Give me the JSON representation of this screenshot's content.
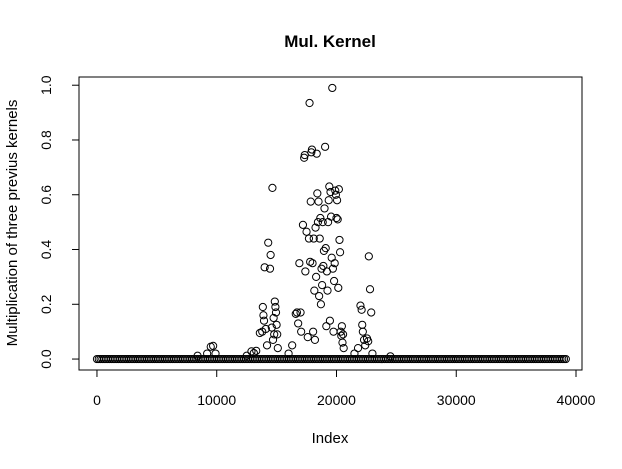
{
  "chart_data": {
    "type": "scatter",
    "title": "Mul. Kernel",
    "xlabel": "Index",
    "ylabel": "Multiplication of three previus kernels",
    "xlim": [
      -1500,
      40500
    ],
    "ylim": [
      -0.04,
      1.03
    ],
    "x_ticks": [
      0,
      10000,
      20000,
      30000,
      40000
    ],
    "x_tick_labels": [
      "0",
      "10000",
      "20000",
      "30000",
      "40000"
    ],
    "y_ticks": [
      0.0,
      0.2,
      0.4,
      0.6,
      0.8,
      1.0
    ],
    "y_tick_labels": [
      "0.0",
      "0.2",
      "0.4",
      "0.6",
      "0.8",
      "1.0"
    ],
    "grid": false,
    "legend": "none",
    "baseline": {
      "x_range": [
        0,
        39200
      ],
      "y": 0.0,
      "step": 150
    },
    "points": [
      [
        8400,
        0.012
      ],
      [
        9200,
        0.02
      ],
      [
        9500,
        0.045
      ],
      [
        9700,
        0.048
      ],
      [
        9900,
        0.02
      ],
      [
        12500,
        0.012
      ],
      [
        12900,
        0.028
      ],
      [
        13100,
        0.022
      ],
      [
        13300,
        0.03
      ],
      [
        13600,
        0.095
      ],
      [
        13800,
        0.1
      ],
      [
        13850,
        0.19
      ],
      [
        13900,
        0.16
      ],
      [
        13950,
        0.14
      ],
      [
        14000,
        0.335
      ],
      [
        14100,
        0.11
      ],
      [
        14200,
        0.05
      ],
      [
        14300,
        0.425
      ],
      [
        14450,
        0.33
      ],
      [
        14500,
        0.38
      ],
      [
        14600,
        0.115
      ],
      [
        14650,
        0.625
      ],
      [
        14700,
        0.07
      ],
      [
        14750,
        0.15
      ],
      [
        14800,
        0.09
      ],
      [
        14850,
        0.21
      ],
      [
        14900,
        0.19
      ],
      [
        14950,
        0.17
      ],
      [
        15000,
        0.125
      ],
      [
        15050,
        0.09
      ],
      [
        15100,
        0.04
      ],
      [
        16000,
        0.02
      ],
      [
        16300,
        0.05
      ],
      [
        16600,
        0.165
      ],
      [
        16700,
        0.17
      ],
      [
        16800,
        0.13
      ],
      [
        16900,
        0.35
      ],
      [
        17000,
        0.17
      ],
      [
        17050,
        0.1
      ],
      [
        17200,
        0.49
      ],
      [
        17300,
        0.735
      ],
      [
        17350,
        0.745
      ],
      [
        17400,
        0.32
      ],
      [
        17500,
        0.465
      ],
      [
        17600,
        0.08
      ],
      [
        17700,
        0.44
      ],
      [
        17750,
        0.935
      ],
      [
        17800,
        0.355
      ],
      [
        17850,
        0.575
      ],
      [
        17900,
        0.755
      ],
      [
        17950,
        0.765
      ],
      [
        18000,
        0.35
      ],
      [
        18050,
        0.1
      ],
      [
        18100,
        0.44
      ],
      [
        18150,
        0.25
      ],
      [
        18200,
        0.07
      ],
      [
        18250,
        0.48
      ],
      [
        18300,
        0.3
      ],
      [
        18350,
        0.75
      ],
      [
        18400,
        0.605
      ],
      [
        18450,
        0.5
      ],
      [
        18500,
        0.575
      ],
      [
        18550,
        0.23
      ],
      [
        18600,
        0.44
      ],
      [
        18650,
        0.515
      ],
      [
        18700,
        0.2
      ],
      [
        18750,
        0.33
      ],
      [
        18800,
        0.27
      ],
      [
        18850,
        0.5
      ],
      [
        18900,
        0.34
      ],
      [
        18950,
        0.395
      ],
      [
        19000,
        0.55
      ],
      [
        19050,
        0.775
      ],
      [
        19100,
        0.405
      ],
      [
        19150,
        0.12
      ],
      [
        19200,
        0.32
      ],
      [
        19250,
        0.25
      ],
      [
        19300,
        0.5
      ],
      [
        19350,
        0.58
      ],
      [
        19400,
        0.63
      ],
      [
        19450,
        0.14
      ],
      [
        19500,
        0.61
      ],
      [
        19550,
        0.52
      ],
      [
        19600,
        0.37
      ],
      [
        19650,
        0.99
      ],
      [
        19700,
        0.33
      ],
      [
        19750,
        0.1
      ],
      [
        19800,
        0.285
      ],
      [
        19850,
        0.35
      ],
      [
        19900,
        0.615
      ],
      [
        19950,
        0.6
      ],
      [
        20000,
        0.515
      ],
      [
        20050,
        0.58
      ],
      [
        20100,
        0.51
      ],
      [
        20150,
        0.26
      ],
      [
        20200,
        0.62
      ],
      [
        20250,
        0.435
      ],
      [
        20300,
        0.39
      ],
      [
        20350,
        0.1
      ],
      [
        20400,
        0.085
      ],
      [
        20450,
        0.12
      ],
      [
        20500,
        0.06
      ],
      [
        20550,
        0.09
      ],
      [
        20600,
        0.04
      ],
      [
        21500,
        0.02
      ],
      [
        21800,
        0.04
      ],
      [
        22000,
        0.195
      ],
      [
        22100,
        0.18
      ],
      [
        22150,
        0.125
      ],
      [
        22200,
        0.1
      ],
      [
        22300,
        0.07
      ],
      [
        22400,
        0.05
      ],
      [
        22550,
        0.075
      ],
      [
        22650,
        0.065
      ],
      [
        22700,
        0.375
      ],
      [
        22800,
        0.255
      ],
      [
        22900,
        0.17
      ],
      [
        23000,
        0.02
      ],
      [
        24500,
        0.01
      ]
    ]
  }
}
